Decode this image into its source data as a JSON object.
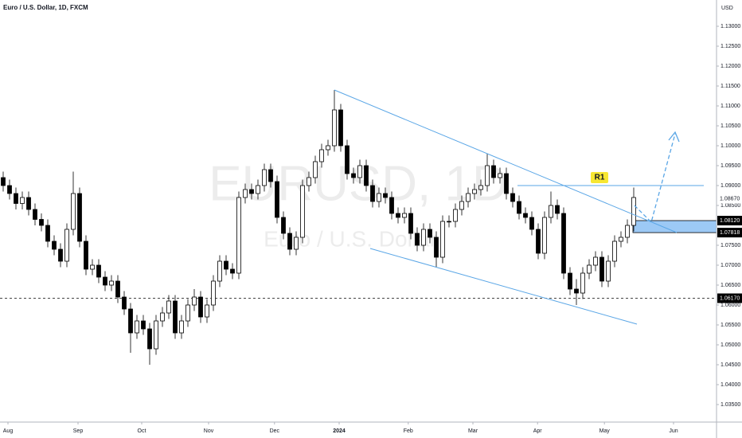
{
  "chart_data": {
    "type": "candlestick",
    "title": "Euro / U.S. Dollar, 1D, FXCM",
    "currency": "USD",
    "watermark": "EURUSD, 1D",
    "watermark_subtitle": "Euro / U.S. Dollar",
    "up_color": "#ffffff",
    "down_color": "#000000",
    "candles": [
      [
        1.092,
        1.0935,
        1.0885,
        1.09
      ],
      [
        1.09,
        1.0915,
        1.0865,
        1.088
      ],
      [
        1.088,
        1.0895,
        1.084,
        1.0855
      ],
      [
        1.0855,
        1.0885,
        1.084,
        1.087
      ],
      [
        1.087,
        1.0885,
        1.0825,
        1.084
      ],
      [
        1.084,
        1.0855,
        1.08,
        1.0815
      ],
      [
        1.0815,
        1.083,
        1.0785,
        1.08
      ],
      [
        1.08,
        1.0815,
        1.0745,
        1.076
      ],
      [
        1.076,
        1.0775,
        1.0725,
        1.074
      ],
      [
        1.074,
        1.0755,
        1.0695,
        1.071
      ],
      [
        1.071,
        1.0805,
        1.0695,
        1.079
      ],
      [
        1.079,
        1.0935,
        1.0775,
        1.088
      ],
      [
        1.088,
        1.0895,
        1.0745,
        1.076
      ],
      [
        1.076,
        1.0775,
        1.0675,
        1.069
      ],
      [
        1.069,
        1.0715,
        1.0675,
        1.07
      ],
      [
        1.07,
        1.0715,
        1.0655,
        1.067
      ],
      [
        1.067,
        1.0685,
        1.0635,
        1.065
      ],
      [
        1.065,
        1.0675,
        1.0635,
        1.066
      ],
      [
        1.066,
        1.0675,
        1.0605,
        1.062
      ],
      [
        1.062,
        1.0635,
        1.0575,
        1.059
      ],
      [
        1.059,
        1.0605,
        1.048,
        1.053
      ],
      [
        1.053,
        1.0575,
        1.0515,
        1.056
      ],
      [
        1.056,
        1.0575,
        1.0525,
        1.054
      ],
      [
        1.054,
        1.0555,
        1.045,
        1.049
      ],
      [
        1.049,
        1.0575,
        1.0475,
        1.056
      ],
      [
        1.056,
        1.0595,
        1.0545,
        1.058
      ],
      [
        1.058,
        1.0625,
        1.0565,
        1.061
      ],
      [
        1.061,
        1.0625,
        1.0515,
        1.053
      ],
      [
        1.053,
        1.0575,
        1.0515,
        1.056
      ],
      [
        1.056,
        1.0615,
        1.0545,
        1.06
      ],
      [
        1.06,
        1.064,
        1.0585,
        1.062
      ],
      [
        1.062,
        1.0635,
        1.0555,
        1.057
      ],
      [
        1.057,
        1.0615,
        1.0555,
        1.06
      ],
      [
        1.06,
        1.0675,
        1.0585,
        1.066
      ],
      [
        1.066,
        1.0725,
        1.0645,
        1.071
      ],
      [
        1.071,
        1.0725,
        1.0675,
        1.069
      ],
      [
        1.069,
        1.0705,
        1.0665,
        1.068
      ],
      [
        1.068,
        1.0885,
        1.0665,
        1.087
      ],
      [
        1.087,
        1.0905,
        1.0855,
        1.089
      ],
      [
        1.089,
        1.0905,
        1.0865,
        1.088
      ],
      [
        1.088,
        1.0915,
        1.0865,
        1.09
      ],
      [
        1.09,
        1.0955,
        1.0885,
        1.094
      ],
      [
        1.094,
        1.0955,
        1.0895,
        1.091
      ],
      [
        1.091,
        1.0925,
        1.0805,
        1.082
      ],
      [
        1.082,
        1.0835,
        1.0765,
        1.078
      ],
      [
        1.078,
        1.0795,
        1.0725,
        1.074
      ],
      [
        1.074,
        1.0785,
        1.0725,
        1.077
      ],
      [
        1.077,
        1.0915,
        1.0755,
        1.09
      ],
      [
        1.09,
        1.0935,
        1.0885,
        1.092
      ],
      [
        1.092,
        1.0975,
        1.0905,
        1.096
      ],
      [
        1.096,
        1.1005,
        1.0945,
        1.099
      ],
      [
        1.099,
        1.1015,
        1.0975,
        1.1
      ],
      [
        1.1,
        1.114,
        1.0985,
        1.109
      ],
      [
        1.109,
        1.1105,
        1.0985,
        1.1
      ],
      [
        1.1,
        1.1015,
        1.0915,
        1.093
      ],
      [
        1.093,
        1.0945,
        1.0905,
        1.092
      ],
      [
        1.092,
        1.0965,
        1.0905,
        1.095
      ],
      [
        1.095,
        1.0965,
        1.0885,
        1.09
      ],
      [
        1.09,
        1.0915,
        1.0845,
        1.086
      ],
      [
        1.086,
        1.0895,
        1.0845,
        1.088
      ],
      [
        1.088,
        1.0895,
        1.0855,
        1.087
      ],
      [
        1.087,
        1.0885,
        1.0815,
        1.083
      ],
      [
        1.083,
        1.0845,
        1.0805,
        1.082
      ],
      [
        1.082,
        1.0845,
        1.0805,
        1.083
      ],
      [
        1.083,
        1.0845,
        1.0765,
        1.078
      ],
      [
        1.078,
        1.0795,
        1.0735,
        1.075
      ],
      [
        1.075,
        1.0805,
        1.0735,
        1.079
      ],
      [
        1.079,
        1.0805,
        1.0755,
        1.077
      ],
      [
        1.077,
        1.0785,
        1.0695,
        1.072
      ],
      [
        1.072,
        1.0825,
        1.0705,
        1.081
      ],
      [
        1.081,
        1.0825,
        1.0795,
        1.081
      ],
      [
        1.081,
        1.0855,
        1.0795,
        1.084
      ],
      [
        1.084,
        1.0875,
        1.0825,
        1.086
      ],
      [
        1.086,
        1.0895,
        1.0845,
        1.088
      ],
      [
        1.088,
        1.0905,
        1.0865,
        1.089
      ],
      [
        1.089,
        1.0915,
        1.0875,
        1.09
      ],
      [
        1.09,
        1.098,
        1.0885,
        1.095
      ],
      [
        1.095,
        1.0965,
        1.0905,
        1.092
      ],
      [
        1.092,
        1.0945,
        1.0905,
        1.093
      ],
      [
        1.093,
        1.0945,
        1.0865,
        1.088
      ],
      [
        1.088,
        1.0895,
        1.0845,
        1.086
      ],
      [
        1.086,
        1.0875,
        1.0815,
        1.083
      ],
      [
        1.083,
        1.0845,
        1.0805,
        1.082
      ],
      [
        1.082,
        1.0835,
        1.0775,
        1.079
      ],
      [
        1.079,
        1.0805,
        1.0715,
        1.073
      ],
      [
        1.073,
        1.0835,
        1.0715,
        1.082
      ],
      [
        1.082,
        1.0885,
        1.0805,
        1.085
      ],
      [
        1.085,
        1.0865,
        1.0815,
        1.083
      ],
      [
        1.083,
        1.0845,
        1.0665,
        1.068
      ],
      [
        1.068,
        1.0695,
        1.0625,
        1.064
      ],
      [
        1.064,
        1.0665,
        1.06,
        1.063
      ],
      [
        1.063,
        1.0695,
        1.0615,
        1.068
      ],
      [
        1.068,
        1.0715,
        1.0665,
        1.07
      ],
      [
        1.07,
        1.0735,
        1.0685,
        1.072
      ],
      [
        1.072,
        1.0735,
        1.0645,
        1.066
      ],
      [
        1.066,
        1.0725,
        1.0645,
        1.071
      ],
      [
        1.071,
        1.0775,
        1.0695,
        1.076
      ],
      [
        1.076,
        1.0785,
        1.0745,
        1.077
      ],
      [
        1.077,
        1.0815,
        1.0755,
        1.08
      ],
      [
        1.08,
        1.0895,
        1.0785,
        1.087
      ]
    ],
    "xlim": [
      -0.5,
      112
    ],
    "xticks": [
      {
        "value": 0.75,
        "label": "Aug"
      },
      {
        "value": 11.75,
        "label": "Sep"
      },
      {
        "value": 21.75,
        "label": "Oct"
      },
      {
        "value": 32.25,
        "label": "Nov"
      },
      {
        "value": 42.6,
        "label": "Dec"
      },
      {
        "value": 52.75,
        "label": "2024"
      },
      {
        "value": 63.6,
        "label": "Feb"
      },
      {
        "value": 73.75,
        "label": "Mar"
      },
      {
        "value": 83.9,
        "label": "Apr"
      },
      {
        "value": 94.4,
        "label": "May"
      },
      {
        "value": 105.25,
        "label": "Jun"
      }
    ],
    "ylim": [
      1.0306,
      1.1366
    ],
    "yticks": [
      {
        "value": 1.035,
        "label": "1.03500"
      },
      {
        "value": 1.04,
        "label": "1.04000"
      },
      {
        "value": 1.045,
        "label": "1.04500"
      },
      {
        "value": 1.05,
        "label": "1.05000"
      },
      {
        "value": 1.055,
        "label": "1.05500"
      },
      {
        "value": 1.06,
        "label": "1.06000"
      },
      {
        "value": 1.065,
        "label": "1.06500"
      },
      {
        "value": 1.07,
        "label": "1.07000"
      },
      {
        "value": 1.075,
        "label": "1.07500"
      },
      {
        "value": 1.085,
        "label": "1.08500"
      },
      {
        "value": 1.09,
        "label": "1.09000"
      },
      {
        "value": 1.095,
        "label": "1.09500"
      },
      {
        "value": 1.1,
        "label": "1.10000"
      },
      {
        "value": 1.105,
        "label": "1.10500"
      },
      {
        "value": 1.11,
        "label": "1.11000"
      },
      {
        "value": 1.115,
        "label": "1.11500"
      },
      {
        "value": 1.12,
        "label": "1.12000"
      },
      {
        "value": 1.125,
        "label": "1.12500"
      },
      {
        "value": 1.13,
        "label": "1.13000"
      }
    ],
    "last_price": {
      "value": 1.0867,
      "label": "1.08670"
    },
    "support_level": {
      "value": 1.0617,
      "label": "1.06170"
    },
    "zone": {
      "top": {
        "value": 1.0812,
        "label": "1.08120"
      },
      "bottom": {
        "value": 1.07818,
        "label": "1.07818"
      }
    },
    "resistance": {
      "value": 1.09,
      "label": "R1"
    }
  }
}
